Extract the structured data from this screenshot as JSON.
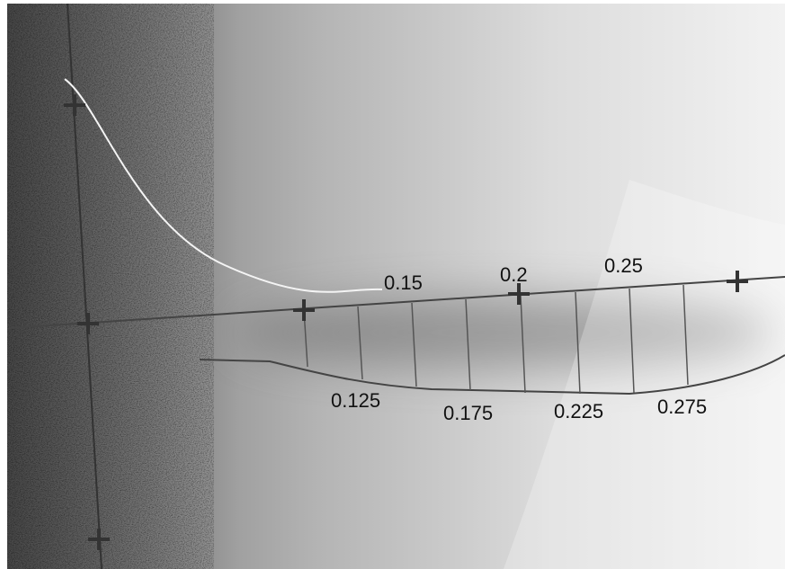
{
  "upper_labels": [
    "0.15",
    "0.2",
    "0.25"
  ],
  "lower_labels": [
    "0.125",
    "0.175",
    "0.225",
    "0.275"
  ]
}
